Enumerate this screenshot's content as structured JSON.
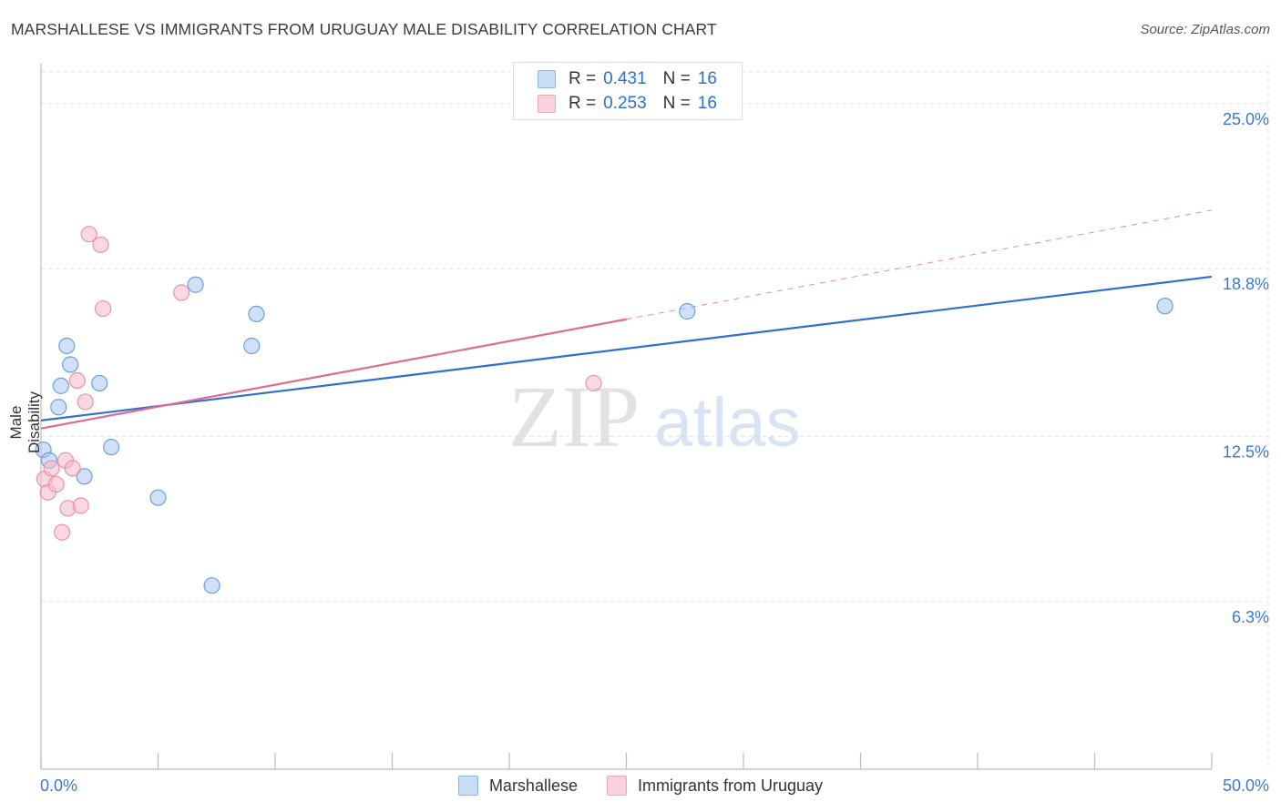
{
  "title": "MARSHALLESE VS IMMIGRANTS FROM URUGUAY MALE DISABILITY CORRELATION CHART",
  "source": "Source: ZipAtlas.com",
  "watermark": {
    "zip": "ZIP",
    "atlas": "atlas"
  },
  "legend_top": [
    {
      "r_label": "R =",
      "r": "0.431",
      "n_label": "N =",
      "n": "16",
      "color": "#a9c9ef"
    },
    {
      "r_label": "R =",
      "r": "0.253",
      "n_label": "N =",
      "n": "16",
      "color": "#f6b8c9"
    }
  ],
  "legend_bottom": [
    {
      "label": "Marshallese",
      "color": "#a9c9ef"
    },
    {
      "label": "Immigrants from Uruguay",
      "color": "#f6b8c9"
    }
  ],
  "chart_data": {
    "type": "scatter",
    "title": "MARSHALLESE VS IMMIGRANTS FROM URUGUAY MALE DISABILITY CORRELATION CHART",
    "xlabel": "",
    "ylabel": "Male Disability",
    "xlim": [
      0,
      50
    ],
    "ylim": [
      0,
      26.5
    ],
    "x_tick_labels": [
      "0.0%",
      "50.0%"
    ],
    "y_ticks": [
      6.3,
      12.5,
      18.8,
      25.0
    ],
    "y_tick_labels": [
      "6.3%",
      "12.5%",
      "18.8%",
      "25.0%"
    ],
    "series": [
      {
        "name": "Marshallese",
        "color": "#a9c9ef",
        "stroke": "#6a9fdf",
        "line_color": "#2f6fcf",
        "points": [
          {
            "x": 0.1,
            "y": 12.0
          },
          {
            "x": 0.35,
            "y": 11.6
          },
          {
            "x": 0.75,
            "y": 13.6
          },
          {
            "x": 0.85,
            "y": 14.4
          },
          {
            "x": 1.1,
            "y": 15.9
          },
          {
            "x": 1.25,
            "y": 15.2
          },
          {
            "x": 1.85,
            "y": 11.0
          },
          {
            "x": 2.5,
            "y": 14.5
          },
          {
            "x": 3.0,
            "y": 12.1
          },
          {
            "x": 5.0,
            "y": 10.2
          },
          {
            "x": 6.6,
            "y": 18.2
          },
          {
            "x": 7.3,
            "y": 6.9
          },
          {
            "x": 9.0,
            "y": 15.9
          },
          {
            "x": 9.2,
            "y": 17.1
          },
          {
            "x": 27.6,
            "y": 17.2
          },
          {
            "x": 48.0,
            "y": 17.4
          }
        ],
        "trend": {
          "x1": 0,
          "y1": 13.1,
          "x2": 50,
          "y2": 18.5,
          "dashed_to": null
        }
      },
      {
        "name": "Immigrants from Uruguay",
        "color": "#f6b8c9",
        "stroke": "#e992ad",
        "line_color": "#e06a92",
        "points": [
          {
            "x": 0.15,
            "y": 10.9
          },
          {
            "x": 0.3,
            "y": 10.4
          },
          {
            "x": 0.45,
            "y": 11.3
          },
          {
            "x": 0.65,
            "y": 10.7
          },
          {
            "x": 0.9,
            "y": 8.9
          },
          {
            "x": 1.05,
            "y": 11.6
          },
          {
            "x": 1.15,
            "y": 9.8
          },
          {
            "x": 1.35,
            "y": 11.3
          },
          {
            "x": 1.55,
            "y": 14.6
          },
          {
            "x": 1.7,
            "y": 9.9
          },
          {
            "x": 1.9,
            "y": 13.8
          },
          {
            "x": 2.05,
            "y": 20.1
          },
          {
            "x": 2.55,
            "y": 19.7
          },
          {
            "x": 2.65,
            "y": 17.3
          },
          {
            "x": 6.0,
            "y": 17.9
          },
          {
            "x": 23.6,
            "y": 14.5
          }
        ],
        "trend": {
          "x1": 0,
          "y1": 12.8,
          "x2": 25,
          "y2": 16.9,
          "dashed_to": {
            "x": 50,
            "y": 21.0
          }
        }
      }
    ]
  }
}
